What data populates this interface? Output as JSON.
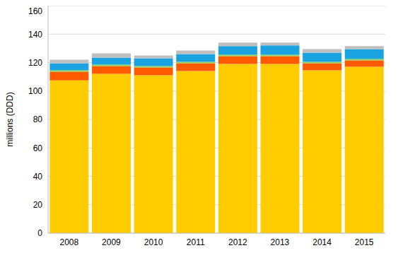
{
  "chart_data": {
    "type": "bar",
    "y_label": "millions (DDD)",
    "categories": [
      "2008",
      "2009",
      "2010",
      "2011",
      "2012",
      "2013",
      "2014",
      "2015"
    ],
    "series": [
      {
        "color": "#FFCC00",
        "values": [
          107.5,
          112,
          111,
          114,
          119,
          119,
          114.5,
          117
        ]
      },
      {
        "color": "#FF5A00",
        "values": [
          6,
          5.5,
          5.5,
          5.5,
          5.5,
          5.5,
          5,
          4.5
        ]
      },
      {
        "color": "#92D050",
        "values": [
          1,
          1,
          1,
          1,
          1,
          1,
          1,
          1
        ]
      },
      {
        "color": "#1AA3E0",
        "values": [
          5,
          5,
          5.5,
          5.5,
          6,
          6.5,
          6.5,
          7
        ]
      },
      {
        "color": "#BFBFBF",
        "values": [
          2.5,
          3,
          2,
          2.5,
          2.5,
          2,
          2.5,
          2
        ]
      }
    ],
    "ylim": [
      0,
      160
    ],
    "yticks": [
      0,
      20,
      40,
      60,
      80,
      100,
      120,
      140,
      160
    ],
    "stacked": true,
    "grid": true
  }
}
